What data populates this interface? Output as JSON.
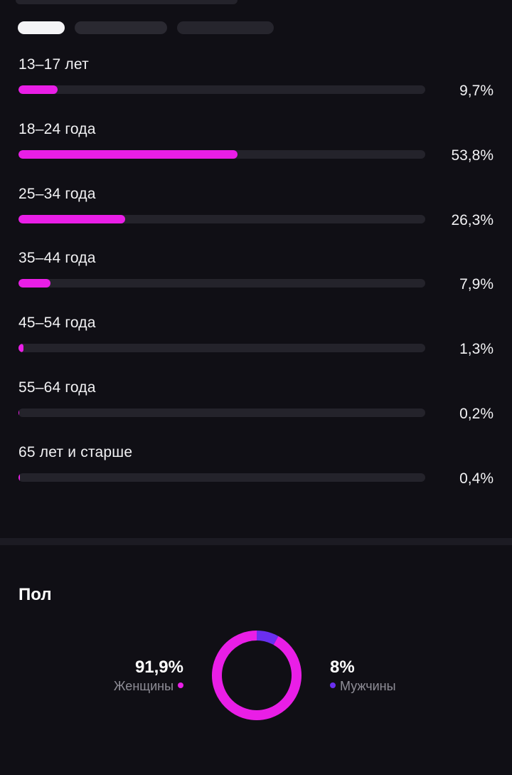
{
  "age_distribution": [
    {
      "label": "13–17 лет",
      "value_text": "9,7%",
      "percent": 9.7
    },
    {
      "label": "18–24 года",
      "value_text": "53,8%",
      "percent": 53.8
    },
    {
      "label": "25–34 года",
      "value_text": "26,3%",
      "percent": 26.3
    },
    {
      "label": "35–44 года",
      "value_text": "7,9%",
      "percent": 7.9
    },
    {
      "label": "45–54 года",
      "value_text": "1,3%",
      "percent": 1.3
    },
    {
      "label": "55–64 года",
      "value_text": "0,2%",
      "percent": 0.2
    },
    {
      "label": "65 лет и старше",
      "value_text": "0,4%",
      "percent": 0.4
    }
  ],
  "gender": {
    "title": "Пол",
    "female": {
      "value_text": "91,9%",
      "label": "Женщины",
      "percent": 91.9,
      "color": "#e91ee6"
    },
    "male": {
      "value_text": "8%",
      "label": "Мужчины",
      "percent": 8.0,
      "color": "#6a2ff0"
    }
  },
  "colors": {
    "accent": "#e91ee6",
    "track": "#24232b",
    "background": "#100f15"
  },
  "chart_data": [
    {
      "type": "bar",
      "categories": [
        "13–17 лет",
        "18–24 года",
        "25–34 года",
        "35–44 года",
        "45–54 года",
        "55–64 года",
        "65 лет и старше"
      ],
      "values": [
        9.7,
        53.8,
        26.3,
        7.9,
        1.3,
        0.2,
        0.4
      ],
      "xlim": [
        0,
        100
      ]
    },
    {
      "type": "pie",
      "categories": [
        "Женщины",
        "Мужчины"
      ],
      "values": [
        91.9,
        8.0
      ]
    }
  ]
}
